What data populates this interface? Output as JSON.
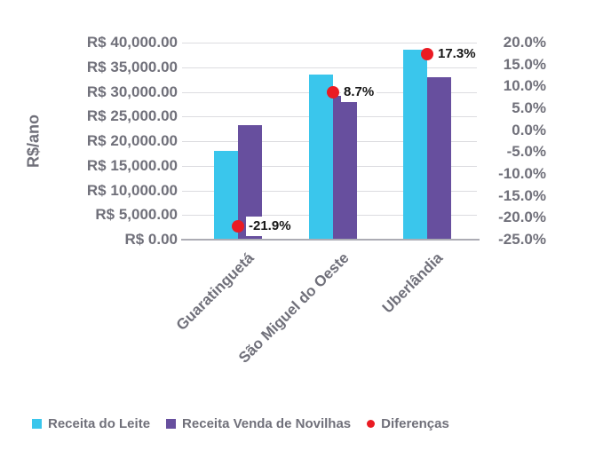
{
  "chart": {
    "background": "#FFFFFF",
    "axis_text_color": "#70707A",
    "grid_color": "#DCDCE0",
    "axis_line_color": "#ACACB4",
    "point_label_text_color": "#161616",
    "point_label_background": "#FFFFFF"
  },
  "chart_data": {
    "type": "bar",
    "title": "",
    "categories": [
      "Guaratinguetá",
      "São Miguel do Oeste",
      "Uberlândia"
    ],
    "series": [
      {
        "name": "Receita do Leite",
        "type": "bar",
        "marker": "square",
        "color": "#3AC6EC",
        "axis": "left",
        "values": [
          18000,
          33500,
          38600
        ]
      },
      {
        "name": "Receita Venda de Novilhas",
        "type": "bar",
        "marker": "square",
        "color": "#674F9E",
        "axis": "left",
        "values": [
          23300,
          29100,
          33000
        ]
      },
      {
        "name": "Diferenças",
        "type": "point",
        "marker": "circle",
        "color": "#EA1B23",
        "axis": "right",
        "values_pct": [
          -21.9,
          8.7,
          17.3
        ],
        "point_labels": [
          "-21.9%",
          "8.7%",
          "17.3%"
        ]
      }
    ],
    "left_axis": {
      "title": "R$/ano",
      "min": 0,
      "max": 40000,
      "step": 5000,
      "tick_values": [
        40000,
        35000,
        30000,
        25000,
        20000,
        15000,
        10000,
        5000,
        0
      ],
      "tick_labels": [
        "R$ 40,000.00",
        "R$ 35,000.00",
        "R$ 30,000.00",
        "R$ 25,000.00",
        "R$ 20,000.00",
        "R$ 15,000.00",
        "R$ 10,000.00",
        "R$ 5,000.00",
        "R$ 0.00"
      ]
    },
    "right_axis": {
      "min": -25,
      "max": 20,
      "step": 5,
      "tick_values": [
        20,
        15,
        10,
        5,
        0,
        -5,
        -10,
        -15,
        -20,
        -25
      ],
      "tick_labels": [
        "20.0%",
        "15.0%",
        "10.0%",
        "5.0%",
        "0.0%",
        "-5.0%",
        "-10.0%",
        "-15.0%",
        "-20.0%",
        "-25.0%"
      ]
    },
    "grid": true,
    "legend_position": "bottom"
  }
}
